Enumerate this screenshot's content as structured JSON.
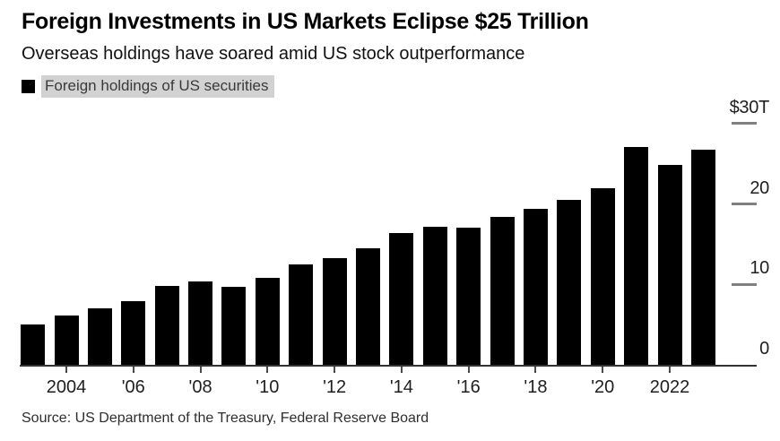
{
  "header": {
    "title": "Foreign Investments in US Markets Eclipse $25 Trillion",
    "subtitle": "Overseas holdings have soared amid US stock outperformance"
  },
  "legend": {
    "label": "Foreign holdings of US securities",
    "swatch_color": "#000000",
    "highlight_color": "#d2d2d2"
  },
  "footer": {
    "source": "Source: US Department of the Treasury, Federal Reserve Board"
  },
  "colors": {
    "bar": "#000000",
    "axis_line": "#333333",
    "x_tick": "#4a4a4a",
    "y_tick_dash": "#808080",
    "label_text": "#1f1f1f"
  },
  "chart_data": {
    "type": "bar",
    "title": "Foreign Investments in US Markets Eclipse $25 Trillion",
    "subtitle": "Overseas holdings have soared amid US stock outperformance",
    "series_name": "Foreign holdings of US securities",
    "unit": "USD trillions",
    "x": [
      2003,
      2004,
      2005,
      2006,
      2007,
      2008,
      2009,
      2010,
      2011,
      2012,
      2013,
      2014,
      2015,
      2016,
      2017,
      2018,
      2019,
      2020,
      2021,
      2022,
      2023
    ],
    "values": [
      5.0,
      6.1,
      7.0,
      7.9,
      9.8,
      10.4,
      9.7,
      10.8,
      12.5,
      13.3,
      14.5,
      16.4,
      17.2,
      17.1,
      18.4,
      19.4,
      20.5,
      22.0,
      27.1,
      24.9,
      26.8
    ],
    "ylim": [
      0,
      30
    ],
    "y_ticks": [
      {
        "value": 30,
        "label": "$30T"
      },
      {
        "value": 20,
        "label": "20"
      },
      {
        "value": 10,
        "label": "10"
      },
      {
        "value": 0,
        "label": "0"
      }
    ],
    "x_ticks": [
      {
        "year": 2004,
        "label": "2004"
      },
      {
        "year": 2006,
        "label": "'06"
      },
      {
        "year": 2008,
        "label": "'08"
      },
      {
        "year": 2010,
        "label": "'10"
      },
      {
        "year": 2012,
        "label": "'12"
      },
      {
        "year": 2014,
        "label": "'14"
      },
      {
        "year": 2016,
        "label": "'16"
      },
      {
        "year": 2018,
        "label": "'18"
      },
      {
        "year": 2020,
        "label": "'20"
      },
      {
        "year": 2022,
        "label": "2022"
      }
    ],
    "grid": "off",
    "legend_position": "top-left",
    "y_axis_side": "right"
  }
}
